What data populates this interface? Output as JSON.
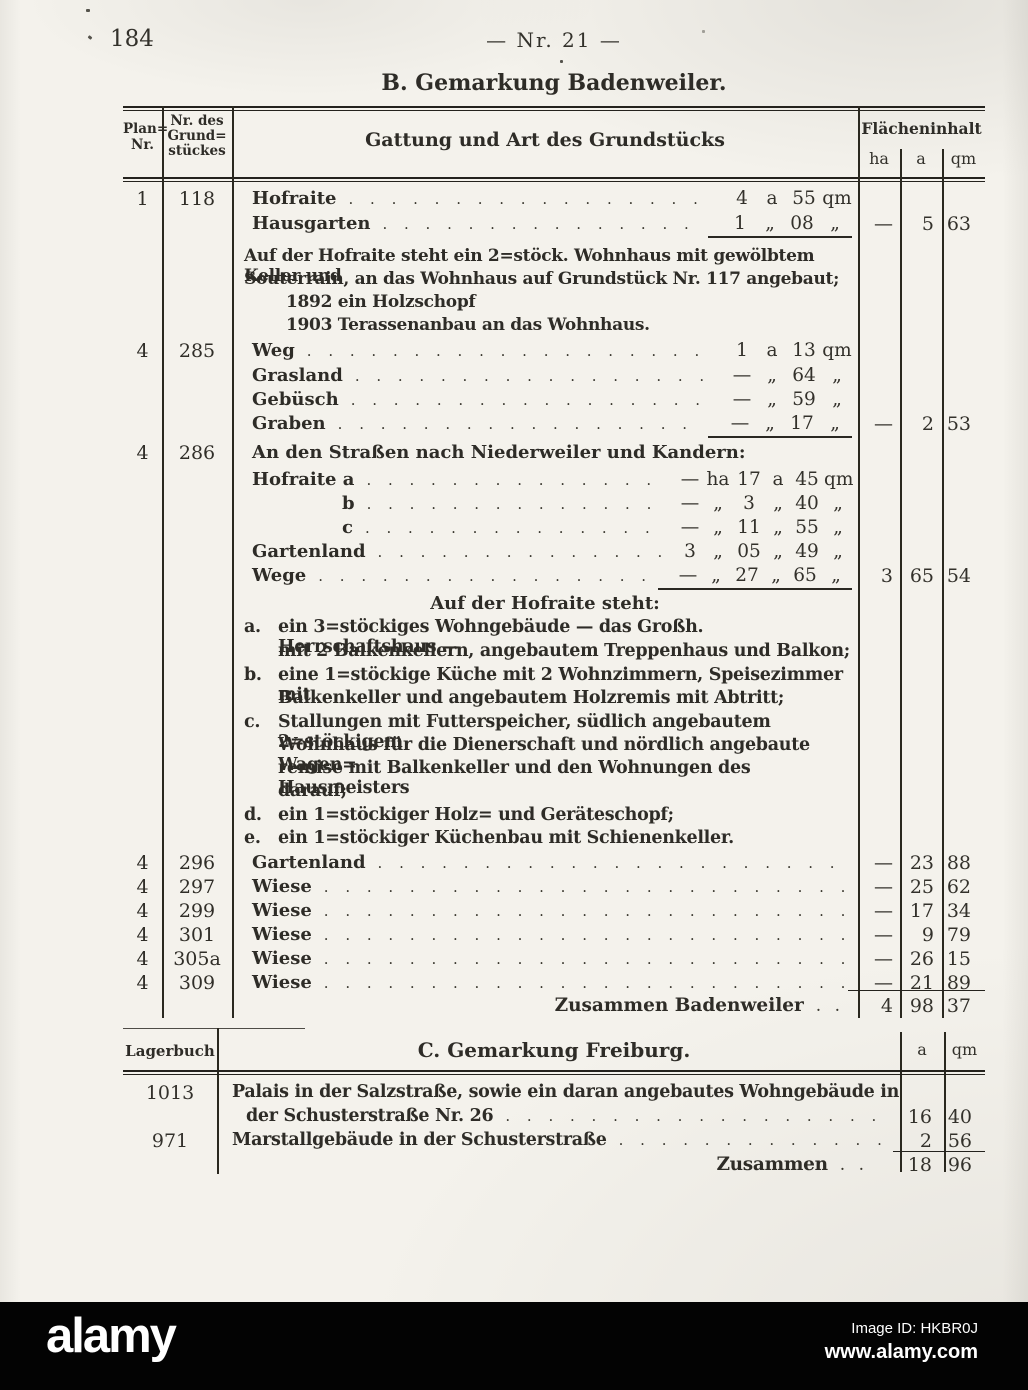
{
  "page": {
    "number": "184",
    "center_header": "— Nr. 21 —"
  },
  "badenweiler": {
    "title": "B. Gemarkung Badenweiler.",
    "columns": {
      "plan_lines": [
        "Plan=",
        "Nr."
      ],
      "grund_lines": [
        "Nr. des",
        "Grund=",
        "stückes"
      ],
      "gattung": "Gattung und Art des Grundstücks",
      "flaeche": "Flächeninhalt",
      "units": [
        "ha",
        "a",
        "qm"
      ]
    },
    "entries": [
      {
        "plan": "1",
        "nr": "118",
        "lines": [
          {
            "label": "Hofraite",
            "val": [
              "4",
              "a",
              "55",
              "qm"
            ]
          },
          {
            "label": "Hausgarten",
            "val": [
              "1",
              "„",
              "08",
              "„"
            ]
          }
        ],
        "total": [
          "—",
          "5",
          "63"
        ],
        "notes": [
          "Auf der Hofraite steht ein 2=stöck. Wohnhaus mit gewölbtem Keller und",
          "Souterrain, an das Wohnhaus auf Grundstück Nr. 117 angebaut;",
          "1892 ein Holzschopf",
          "1903 Terassenanbau an das Wohnhaus."
        ]
      },
      {
        "plan": "4",
        "nr": "285",
        "lines": [
          {
            "label": "Weg",
            "val": [
              "1",
              "a",
              "13",
              "qm"
            ]
          },
          {
            "label": "Grasland",
            "val": [
              "—",
              "„",
              "64",
              "„"
            ]
          },
          {
            "label": "Gebüsch",
            "val": [
              "—",
              "„",
              "59",
              "„"
            ]
          },
          {
            "label": "Graben",
            "val": [
              "—",
              "„",
              "17",
              "„"
            ]
          }
        ],
        "total": [
          "—",
          "2",
          "53"
        ]
      },
      {
        "plan": "4",
        "nr": "286",
        "heading": "An den Straßen nach Niederweiler und Kandern:",
        "lines": [
          {
            "label": "Hofraite a",
            "val": [
              "—",
              "ha",
              "17",
              "a",
              "45",
              "qm"
            ]
          },
          {
            "label": "b",
            "val": [
              "—",
              "„",
              "3",
              "„",
              "40",
              "„"
            ]
          },
          {
            "label": "c",
            "val": [
              "—",
              "„",
              "11",
              "„",
              "55",
              "„"
            ]
          },
          {
            "label": "Gartenland",
            "val": [
              "3",
              "„",
              "05",
              "„",
              "49",
              "„"
            ]
          },
          {
            "label": "Wege",
            "val": [
              "—",
              "„",
              "27",
              "„",
              "65",
              "„"
            ]
          }
        ],
        "total": [
          "3",
          "65",
          "54"
        ],
        "subheading": "Auf der Hofraite steht:",
        "list": [
          {
            "letter": "a.",
            "lines": [
              "ein 3=stöckiges Wohngebäude — das Großh. Herrschaftshaus —",
              "mit 2 Balkenkellern, angebautem Treppenhaus und Balkon;"
            ]
          },
          {
            "letter": "b.",
            "lines": [
              "eine 1=stöckige Küche mit 2 Wohnzimmern, Speisezimmer mit",
              "Balkenkeller und angebautem Holzremis mit Abtritt;"
            ]
          },
          {
            "letter": "c.",
            "lines": [
              "Stallungen mit Futterspeicher, südlich angebautem 2=stöckigem",
              "Wohnhaus für die Dienerschaft und nördlich angebaute Wagen=",
              "remise mit Balkenkeller und den Wohnungen des Hausmeisters",
              "darauf;"
            ]
          },
          {
            "letter": "d.",
            "lines": [
              "ein 1=stöckiger Holz= und Geräteschopf;"
            ]
          },
          {
            "letter": "e.",
            "lines": [
              "ein 1=stöckiger Küchenbau mit Schienenkeller."
            ]
          }
        ]
      },
      {
        "plan": "4",
        "nr": "296",
        "label": "Gartenland",
        "total": [
          "—",
          "23",
          "88"
        ]
      },
      {
        "plan": "4",
        "nr": "297",
        "label": "Wiese",
        "total": [
          "—",
          "25",
          "62"
        ]
      },
      {
        "plan": "4",
        "nr": "299",
        "label": "Wiese",
        "total": [
          "—",
          "17",
          "34"
        ]
      },
      {
        "plan": "4",
        "nr": "301",
        "label": "Wiese",
        "total": [
          "—",
          "9",
          "79"
        ]
      },
      {
        "plan": "4",
        "nr": "305a",
        "label": "Wiese",
        "total": [
          "—",
          "26",
          "15"
        ]
      },
      {
        "plan": "4",
        "nr": "309",
        "label": "Wiese",
        "total": [
          "—",
          "21",
          "89"
        ]
      }
    ],
    "sum": {
      "label": "Zusammen Badenweiler",
      "dots": ". .",
      "total": [
        "4",
        "98",
        "37"
      ]
    }
  },
  "freiburg": {
    "left_column": "Lagerbuch",
    "title": "C. Gemarkung Freiburg.",
    "units": [
      "a",
      "qm"
    ],
    "rows": [
      {
        "nr": "1013",
        "lines": [
          "Palais in der Salzstraße, sowie ein daran angebautes Wohngebäude in",
          "der Schusterstraße Nr. 26"
        ],
        "val": [
          "16",
          "40"
        ]
      },
      {
        "nr": "971",
        "lines": [
          "Marstallgebäude in der Schusterstraße"
        ],
        "val": [
          "2",
          "56"
        ]
      }
    ],
    "sum": {
      "label": "Zusammen",
      "dots": ". .",
      "val": [
        "18",
        "96"
      ]
    }
  },
  "watermark": {
    "logo": "alamy",
    "image_id": "Image ID: HKBR0J",
    "url": "www.alamy.com"
  }
}
